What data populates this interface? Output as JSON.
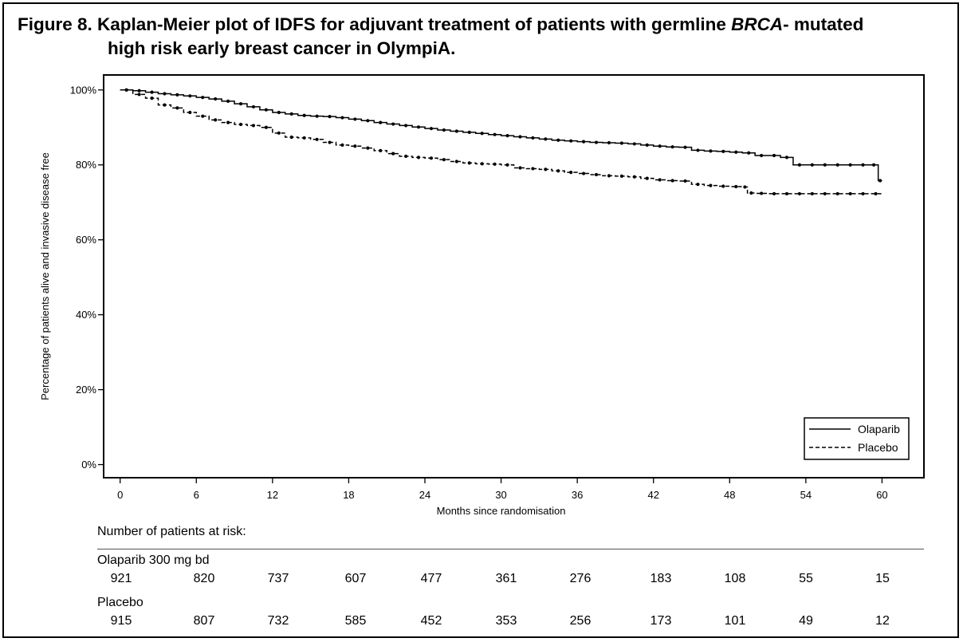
{
  "figure": {
    "title_prefix": "Figure 8. Kaplan-Meier plot of IDFS for adjuvant treatment of patients with germline ",
    "title_italic": "BRCA",
    "title_suffix": "- mutated",
    "title_line2": "high risk  early breast cancer in OlympiA."
  },
  "chart_data": {
    "type": "line",
    "title": "Figure 8. Kaplan-Meier plot of IDFS for adjuvant treatment of patients with germline BRCA- mutated high risk  early breast cancer in OlympiA.",
    "xlabel": "Months since randomisation",
    "ylabel": "Percentage of patients alive and invasive disease free",
    "x_ticks": [
      0,
      6,
      12,
      18,
      24,
      30,
      36,
      42,
      48,
      54,
      60
    ],
    "y_ticks": [
      0,
      20,
      40,
      60,
      80,
      100
    ],
    "y_tick_labels": [
      "0%",
      "20%",
      "40%",
      "60%",
      "80%",
      "100%"
    ],
    "xlim": [
      -1.3,
      63.3
    ],
    "ylim": [
      -3.5,
      104
    ],
    "grid": false,
    "legend_position": "bottom-right",
    "step": true,
    "series": [
      {
        "name": "Olaparib",
        "line_style": "solid",
        "x": [
          0,
          1,
          2,
          3,
          4,
          5,
          6,
          7,
          8,
          9,
          10,
          11,
          12,
          13,
          14,
          15,
          16,
          17,
          18,
          19,
          20,
          21,
          22,
          23,
          24,
          25,
          26,
          27,
          28,
          29,
          30,
          31,
          32,
          33,
          34,
          35,
          36,
          37,
          38,
          39,
          40,
          41,
          42,
          43,
          44,
          45,
          46,
          47,
          48,
          49,
          50,
          51,
          52,
          53,
          54,
          55,
          56,
          57,
          58,
          59,
          59.7,
          60
        ],
        "y": [
          100,
          99.8,
          99.4,
          99.0,
          98.7,
          98.4,
          98.0,
          97.6,
          97.0,
          96.3,
          95.5,
          94.7,
          94.0,
          93.6,
          93.2,
          93.0,
          92.9,
          92.6,
          92.2,
          91.8,
          91.3,
          90.9,
          90.5,
          90.1,
          89.7,
          89.3,
          89.0,
          88.7,
          88.4,
          88.1,
          87.8,
          87.5,
          87.2,
          86.9,
          86.6,
          86.4,
          86.2,
          86.0,
          85.9,
          85.8,
          85.6,
          85.3,
          85.0,
          84.8,
          84.7,
          83.9,
          83.7,
          83.6,
          83.4,
          83.2,
          82.5,
          82.5,
          82.0,
          80.0,
          80.0,
          80.0,
          80.0,
          80.0,
          80.0,
          80.0,
          75.8,
          75.8
        ]
      },
      {
        "name": "Placebo",
        "line_style": "dashed",
        "x": [
          0,
          1,
          2,
          3,
          4,
          5,
          6,
          7,
          8,
          9,
          10,
          11,
          12,
          13,
          14,
          15,
          16,
          17,
          18,
          19,
          20,
          21,
          22,
          23,
          24,
          25,
          26,
          27,
          28,
          29,
          30,
          31,
          32,
          33,
          34,
          35,
          36,
          37,
          38,
          39,
          40,
          41,
          42,
          43,
          44,
          45,
          46,
          47,
          48,
          49,
          49.4,
          50,
          51,
          52,
          53,
          54,
          55,
          56,
          57,
          58,
          59,
          60
        ],
        "y": [
          100,
          98.8,
          97.8,
          96.0,
          95.2,
          94.0,
          93.0,
          92.0,
          91.3,
          90.8,
          90.5,
          90.0,
          88.5,
          87.4,
          87.2,
          86.8,
          86.0,
          85.3,
          85.0,
          84.5,
          83.8,
          83.0,
          82.3,
          82.0,
          81.8,
          81.4,
          80.9,
          80.5,
          80.3,
          80.2,
          80.0,
          79.2,
          79.0,
          78.8,
          78.4,
          78.0,
          77.7,
          77.4,
          77.1,
          77.0,
          76.8,
          76.4,
          76.0,
          75.8,
          75.7,
          74.8,
          74.5,
          74.3,
          74.2,
          74.1,
          72.5,
          72.4,
          72.3,
          72.3,
          72.3,
          72.3,
          72.3,
          72.3,
          72.3,
          72.3,
          72.3,
          72.3
        ]
      }
    ]
  },
  "risk_table": {
    "heading": "Number of patients at risk:",
    "groups": [
      {
        "name": "Olaparib 300 mg bd",
        "values": [
          "921",
          "820",
          "737",
          "607",
          "477",
          "361",
          "276",
          "183",
          "108",
          "55",
          "15"
        ]
      },
      {
        "name": "Placebo",
        "values": [
          "915",
          "807",
          "732",
          "585",
          "452",
          "353",
          "256",
          "173",
          "101",
          "49",
          "12"
        ]
      }
    ]
  }
}
